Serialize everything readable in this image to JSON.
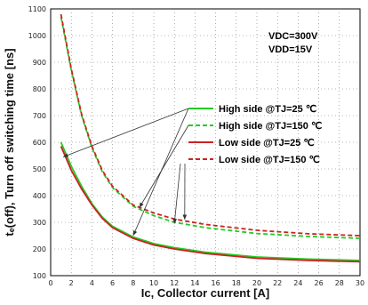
{
  "chart_data": {
    "type": "line",
    "xlabel": "Ic, Collector current [A]",
    "ylabel": "tₑ(off), Turn off switching time [ns]",
    "xlim": [
      0,
      30
    ],
    "ylim": [
      100,
      1100
    ],
    "x_ticks": [
      "0",
      "2",
      "4",
      "6",
      "8",
      "10",
      "12",
      "14",
      "16",
      "18",
      "20",
      "22",
      "24",
      "26",
      "28",
      "30"
    ],
    "y_ticks": [
      "100",
      "200",
      "300",
      "400",
      "500",
      "600",
      "700",
      "800",
      "900",
      "1000",
      "1100"
    ],
    "grid": true,
    "conditions": [
      "VDC=300V",
      "VDD=15V"
    ],
    "legend_position": "right",
    "series": [
      {
        "name": "High side @TJ=25 ℃",
        "color": "#22cc22",
        "dash": "solid",
        "x": [
          1,
          2,
          3,
          4,
          5,
          6,
          8,
          10,
          12,
          15,
          20,
          25,
          30
        ],
        "y": [
          600,
          510,
          435,
          370,
          320,
          285,
          245,
          220,
          205,
          188,
          170,
          162,
          157
        ]
      },
      {
        "name": "High side @TJ=150 ℃",
        "color": "#22cc22",
        "dash": "dashed",
        "x": [
          1,
          2,
          3,
          4,
          5,
          6,
          8,
          10,
          12,
          15,
          20,
          25,
          30
        ],
        "y": [
          1070,
          870,
          700,
          580,
          490,
          430,
          360,
          325,
          300,
          280,
          258,
          247,
          240
        ]
      },
      {
        "name": "Low side @TJ=25 ℃",
        "color": "#cc2222",
        "dash": "solid",
        "x": [
          1,
          2,
          3,
          4,
          5,
          6,
          8,
          10,
          12,
          15,
          20,
          25,
          30
        ],
        "y": [
          585,
          495,
          425,
          365,
          315,
          280,
          240,
          215,
          200,
          183,
          165,
          157,
          152
        ]
      },
      {
        "name": "Low side @TJ=150 ℃",
        "color": "#cc2222",
        "dash": "dashed",
        "x": [
          1,
          2,
          3,
          4,
          5,
          6,
          8,
          10,
          12,
          15,
          20,
          25,
          30
        ],
        "y": [
          1080,
          875,
          705,
          585,
          495,
          435,
          365,
          335,
          312,
          292,
          270,
          257,
          250
        ]
      }
    ]
  }
}
